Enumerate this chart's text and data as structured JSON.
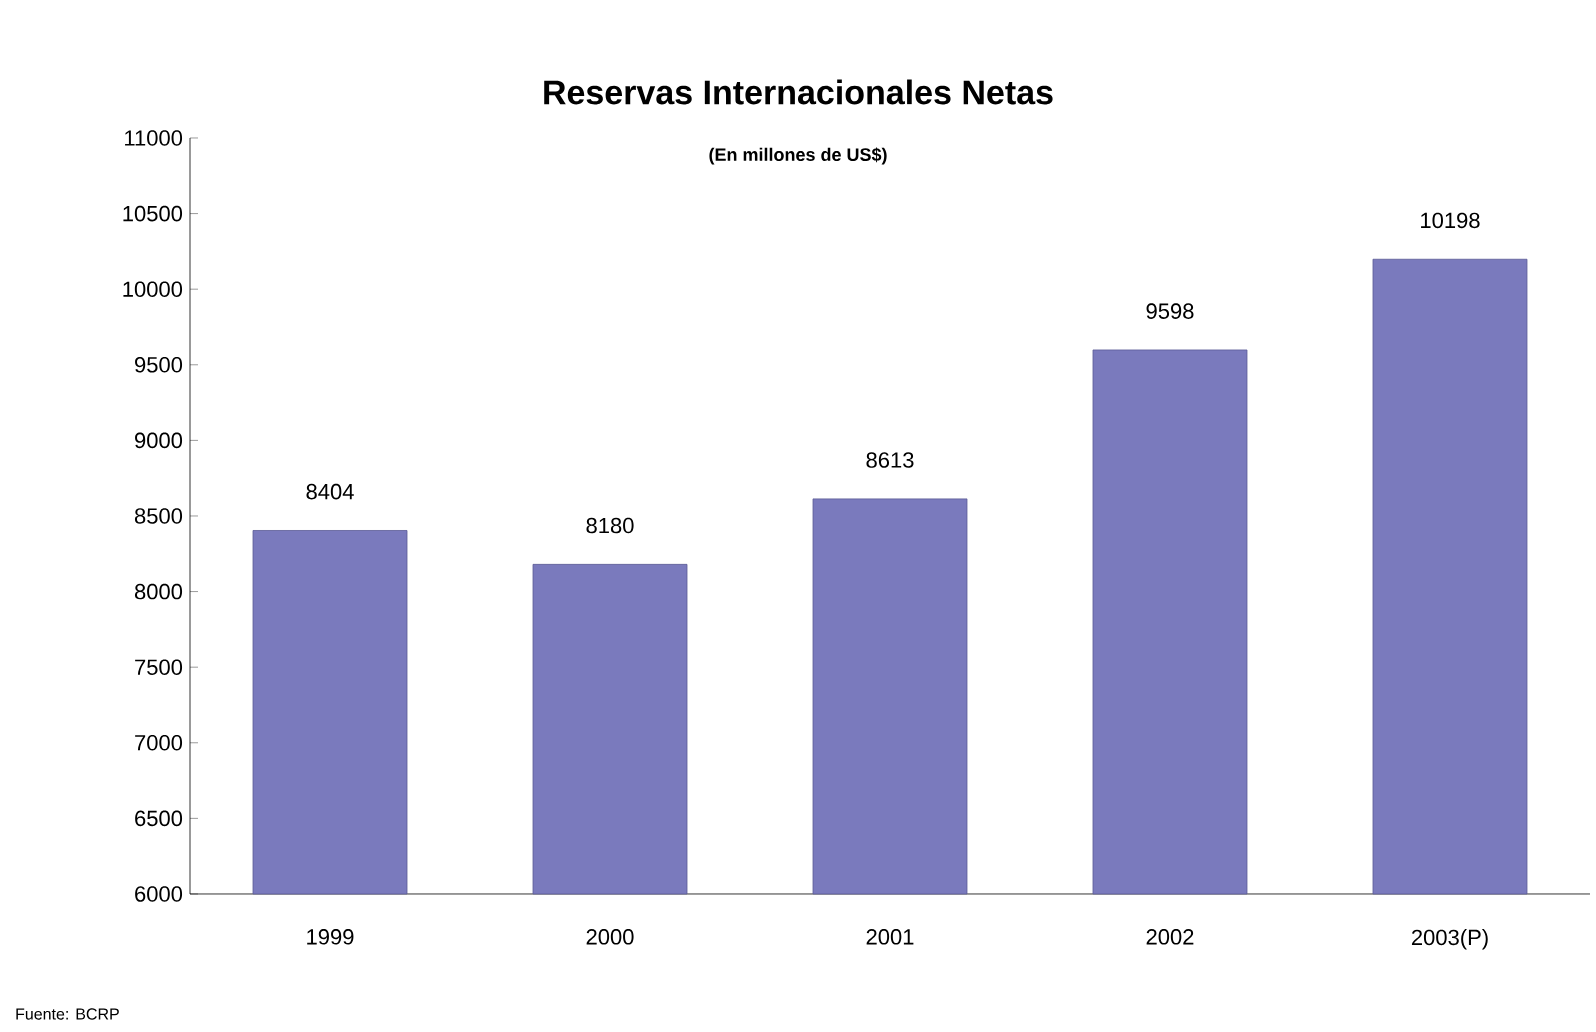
{
  "chart_data": {
    "type": "bar",
    "title": "Reservas Internacionales Netas",
    "subtitle": "(En millones de US$)",
    "categories": [
      "1999",
      "2000",
      "2001",
      "2002",
      "2003(P)"
    ],
    "values": [
      8404,
      8180,
      8613,
      9598,
      10198
    ],
    "color": "#7a7abd",
    "data_labels": true,
    "ylim": [
      6000,
      11000
    ],
    "yticks": [
      6000,
      6500,
      7000,
      7500,
      8000,
      8500,
      9000,
      9500,
      10000,
      10500,
      11000
    ],
    "grid": false,
    "annotations": [
      "Fuente: BCRP"
    ]
  }
}
